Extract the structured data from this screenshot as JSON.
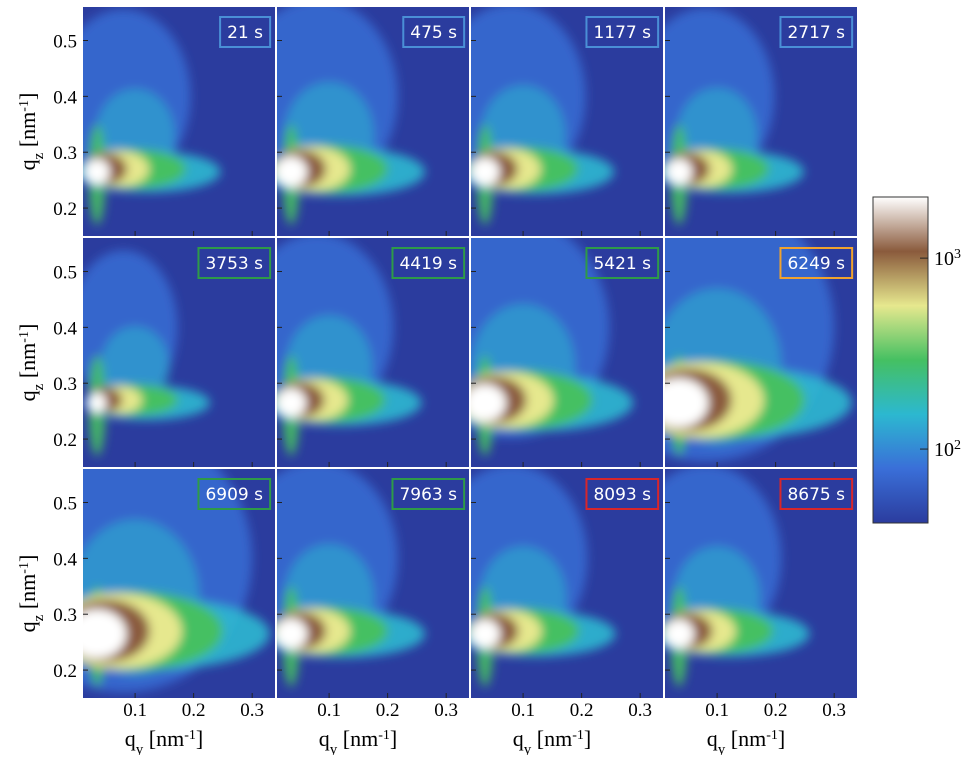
{
  "chart_data": {
    "type": "heatmap-grid",
    "panels": [
      {
        "label": "21 s",
        "frame_color": "#4a8fd6"
      },
      {
        "label": "475 s",
        "frame_color": "#4a8fd6"
      },
      {
        "label": "1177 s",
        "frame_color": "#4a8fd6"
      },
      {
        "label": "2717 s",
        "frame_color": "#4a8fd6"
      },
      {
        "label": "3753 s",
        "frame_color": "#2e9a48"
      },
      {
        "label": "4419 s",
        "frame_color": "#2e9a48"
      },
      {
        "label": "5421 s",
        "frame_color": "#2e9a48"
      },
      {
        "label": "6249 s",
        "frame_color": "#f0a22e"
      },
      {
        "label": "6909 s",
        "frame_color": "#2e9a48"
      },
      {
        "label": "7963 s",
        "frame_color": "#2e9a48"
      },
      {
        "label": "8093 s",
        "frame_color": "#d8262a"
      },
      {
        "label": "8675 s",
        "frame_color": "#d8262a"
      }
    ],
    "x_label": [
      "q",
      "y",
      " [nm",
      "-1",
      "]"
    ],
    "y_label": [
      "q",
      "z",
      " [nm",
      "-1",
      "]"
    ],
    "xlim": [
      0.011,
      0.339
    ],
    "xticks": [
      0.1,
      0.2,
      0.3
    ],
    "ylim": [
      0.15,
      0.56
    ],
    "yticks": [
      0.2,
      0.3,
      0.4,
      0.5
    ],
    "colorbar": {
      "log_scale": true,
      "clim": [
        41,
        2090
      ],
      "ticks": [
        {
          "value": 100,
          "label": "10",
          "sup": "2"
        },
        {
          "value": 1000,
          "label": "10",
          "sup": "3"
        }
      ],
      "colors": [
        "#2b3c9e",
        "#3a6fd8",
        "#2cb8d0",
        "#45c062",
        "#e6e88e",
        "#8a5a3c",
        "#ffffff"
      ]
    }
  }
}
